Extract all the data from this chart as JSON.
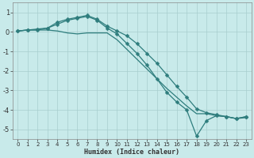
{
  "xlabel": "Humidex (Indice chaleur)",
  "ylabel": "",
  "background_color": "#c8eaea",
  "grid_color": "#a8cece",
  "line_color": "#2e7d7d",
  "xlim": [
    -0.5,
    23.5
  ],
  "ylim": [
    -5.5,
    1.5
  ],
  "xticks": [
    0,
    1,
    2,
    3,
    4,
    5,
    6,
    7,
    8,
    9,
    10,
    11,
    12,
    13,
    14,
    15,
    16,
    17,
    18,
    19,
    20,
    21,
    22,
    23
  ],
  "yticks": [
    -5,
    -4,
    -3,
    -2,
    -1,
    0,
    1
  ],
  "line1_x": [
    0,
    1,
    2,
    3,
    4,
    5,
    6,
    7,
    8,
    9,
    10,
    11,
    12,
    13,
    14,
    15,
    16,
    17,
    18,
    19,
    20,
    21,
    22,
    23
  ],
  "line1_y": [
    0.05,
    0.1,
    0.1,
    0.1,
    0.05,
    -0.05,
    -0.1,
    -0.05,
    -0.05,
    -0.05,
    -0.4,
    -0.9,
    -1.4,
    -1.9,
    -2.4,
    -2.9,
    -3.35,
    -3.8,
    -4.2,
    -4.2,
    -4.3,
    -4.35,
    -4.45,
    -4.4
  ],
  "line2_x": [
    0,
    1,
    2,
    3,
    4,
    5,
    6,
    7,
    8,
    9,
    10,
    11,
    12,
    13,
    14,
    15,
    16,
    17,
    18,
    19,
    20,
    21,
    22,
    23
  ],
  "line2_y": [
    0.05,
    0.1,
    0.15,
    0.2,
    0.5,
    0.65,
    0.75,
    0.85,
    0.65,
    0.3,
    0.05,
    -0.2,
    -0.6,
    -1.1,
    -1.6,
    -2.2,
    -2.8,
    -3.35,
    -3.95,
    -4.15,
    -4.25,
    -4.35,
    -4.45,
    -4.35
  ],
  "line3_x": [
    0,
    1,
    2,
    3,
    4,
    5,
    6,
    7,
    8,
    9,
    10,
    11,
    12,
    13,
    14,
    15,
    16,
    17,
    18,
    19,
    20,
    21,
    22,
    23
  ],
  "line3_y": [
    0.05,
    0.1,
    0.1,
    0.2,
    0.4,
    0.6,
    0.7,
    0.8,
    0.6,
    0.2,
    -0.1,
    -0.6,
    -1.1,
    -1.7,
    -2.4,
    -3.1,
    -3.6,
    -4.0,
    -5.35,
    -4.55,
    -4.3,
    -4.35,
    -4.45,
    -4.35
  ]
}
